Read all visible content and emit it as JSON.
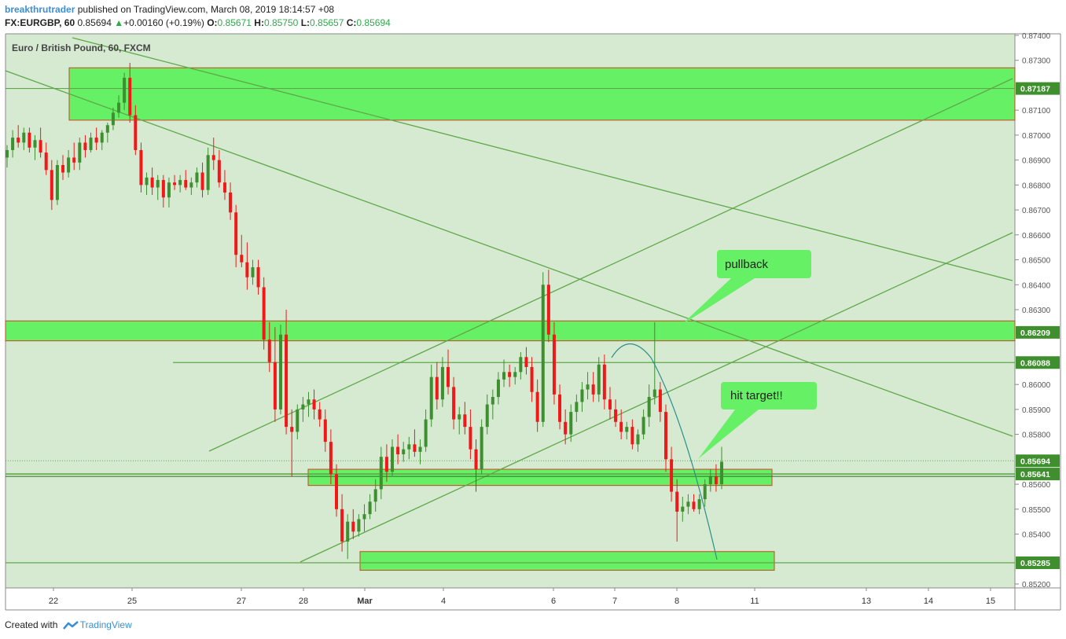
{
  "header": {
    "author": "breakthrutrader",
    "published_text": "published on TradingView.com, March 08, 2019 18:14:57 +08",
    "symbol": "FX:EURGBP, 60",
    "last": "0.85694",
    "change": "+0.00160 (+0.19%)",
    "o_label": "O:",
    "o_value": "0.85671",
    "h_label": "H:",
    "h_value": "0.85750",
    "l_label": "L:",
    "l_value": "0.85657",
    "c_label": "C:",
    "c_value": "0.85694"
  },
  "chart_title": "Euro / British Pound, 60, FXCM",
  "footer": {
    "created_with": "Created with",
    "brand": "TradingView"
  },
  "colors": {
    "background": "#d6ead2",
    "zone_fill": "#66f065",
    "zone_border": "#cc4422",
    "trendline": "#5fa84a",
    "up_candle": "#3d8f2f",
    "down_candle": "#f01818",
    "arc": "#2a8f8a",
    "callout": "#66f065",
    "price_tag": "#3f8f2e"
  },
  "chart_data": {
    "type": "candlestick",
    "y_axis": {
      "range": [
        0.8517,
        0.8742
      ],
      "ticks": [
        "0.87400",
        "0.87300",
        "0.87100",
        "0.87000",
        "0.86900",
        "0.86800",
        "0.86700",
        "0.86600",
        "0.86500",
        "0.86400",
        "0.86300",
        "0.86000",
        "0.85900",
        "0.85800",
        "0.85600",
        "0.85500",
        "0.85400",
        "0.85200"
      ]
    },
    "x_axis": {
      "ticks": [
        "22",
        "25",
        "27",
        "28",
        "Mar",
        "4",
        "6",
        "7",
        "8",
        "11",
        "13",
        "14",
        "15"
      ]
    },
    "price_tags": [
      {
        "label": "0.87187",
        "value": 0.87187
      },
      {
        "label": "0.86209",
        "value": 0.86209
      },
      {
        "label": "0.86088",
        "value": 0.86088
      },
      {
        "label": "0.85694",
        "value": 0.85694,
        "dotted": true
      },
      {
        "label": "0.85641",
        "value": 0.85641
      },
      {
        "label": "0.85285",
        "value": 0.85285
      }
    ],
    "annotations": [
      {
        "text": "pullback"
      },
      {
        "text": "hit target!!"
      }
    ],
    "candles": [
      [
        0.8691,
        0.8696,
        0.8687,
        0.8694
      ],
      [
        0.8694,
        0.8702,
        0.8691,
        0.8699
      ],
      [
        0.8699,
        0.8704,
        0.8695,
        0.8697
      ],
      [
        0.8697,
        0.8703,
        0.8694,
        0.8701
      ],
      [
        0.8701,
        0.8703,
        0.8693,
        0.8695
      ],
      [
        0.8695,
        0.87,
        0.869,
        0.8698
      ],
      [
        0.8698,
        0.8703,
        0.8691,
        0.8693
      ],
      [
        0.8693,
        0.8697,
        0.8684,
        0.8686
      ],
      [
        0.8686,
        0.869,
        0.867,
        0.8674
      ],
      [
        0.8674,
        0.869,
        0.8672,
        0.8688
      ],
      [
        0.8688,
        0.8692,
        0.8682,
        0.8685
      ],
      [
        0.8685,
        0.8694,
        0.8683,
        0.8691
      ],
      [
        0.8691,
        0.8697,
        0.8686,
        0.8689
      ],
      [
        0.8689,
        0.8699,
        0.8686,
        0.8697
      ],
      [
        0.8697,
        0.87,
        0.8691,
        0.8694
      ],
      [
        0.8694,
        0.8701,
        0.8693,
        0.8699
      ],
      [
        0.8699,
        0.8703,
        0.8694,
        0.8697
      ],
      [
        0.8697,
        0.8702,
        0.8694,
        0.8701
      ],
      [
        0.8701,
        0.8705,
        0.8697,
        0.8704
      ],
      [
        0.8704,
        0.8711,
        0.8702,
        0.8709
      ],
      [
        0.8709,
        0.8716,
        0.8707,
        0.8713
      ],
      [
        0.8713,
        0.8725,
        0.871,
        0.8723
      ],
      [
        0.8723,
        0.8729,
        0.8705,
        0.8708
      ],
      [
        0.8708,
        0.8712,
        0.8692,
        0.8694
      ],
      [
        0.8694,
        0.8697,
        0.8677,
        0.868
      ],
      [
        0.868,
        0.8685,
        0.8676,
        0.8683
      ],
      [
        0.8683,
        0.8687,
        0.8676,
        0.8679
      ],
      [
        0.8679,
        0.8684,
        0.8674,
        0.8682
      ],
      [
        0.8682,
        0.8684,
        0.8671,
        0.8675
      ],
      [
        0.8675,
        0.8683,
        0.8671,
        0.8681
      ],
      [
        0.8681,
        0.8684,
        0.8678,
        0.868
      ],
      [
        0.868,
        0.8684,
        0.8677,
        0.8682
      ],
      [
        0.8682,
        0.8686,
        0.8678,
        0.8679
      ],
      [
        0.8679,
        0.8683,
        0.8676,
        0.8681
      ],
      [
        0.8681,
        0.8687,
        0.8679,
        0.8685
      ],
      [
        0.8685,
        0.8689,
        0.8675,
        0.8678
      ],
      [
        0.8678,
        0.8695,
        0.8676,
        0.8692
      ],
      [
        0.8692,
        0.8699,
        0.8686,
        0.869
      ],
      [
        0.869,
        0.8694,
        0.8679,
        0.8681
      ],
      [
        0.8681,
        0.8686,
        0.8674,
        0.8677
      ],
      [
        0.8677,
        0.8681,
        0.8666,
        0.8669
      ],
      [
        0.8669,
        0.8672,
        0.8647,
        0.8652
      ],
      [
        0.8652,
        0.866,
        0.8647,
        0.8649
      ],
      [
        0.8649,
        0.8657,
        0.8638,
        0.8643
      ],
      [
        0.8643,
        0.865,
        0.864,
        0.8647
      ],
      [
        0.8647,
        0.865,
        0.8636,
        0.8639
      ],
      [
        0.8639,
        0.8643,
        0.8614,
        0.8618
      ],
      [
        0.8618,
        0.8625,
        0.8605,
        0.8609
      ],
      [
        0.8609,
        0.8623,
        0.8585,
        0.859
      ],
      [
        0.859,
        0.8624,
        0.8588,
        0.862
      ],
      [
        0.862,
        0.863,
        0.858,
        0.8583
      ],
      [
        0.8583,
        0.859,
        0.8563,
        0.8581
      ],
      [
        0.8581,
        0.8592,
        0.8578,
        0.859
      ],
      [
        0.859,
        0.8595,
        0.8585,
        0.8592
      ],
      [
        0.8592,
        0.8597,
        0.8587,
        0.8594
      ],
      [
        0.8594,
        0.8598,
        0.8586,
        0.859
      ],
      [
        0.859,
        0.8593,
        0.8583,
        0.8586
      ],
      [
        0.8586,
        0.859,
        0.8573,
        0.8577
      ],
      [
        0.8577,
        0.8582,
        0.856,
        0.8564
      ],
      [
        0.8564,
        0.8568,
        0.8547,
        0.855
      ],
      [
        0.855,
        0.8556,
        0.8533,
        0.8537
      ],
      [
        0.8537,
        0.8548,
        0.853,
        0.8545
      ],
      [
        0.8545,
        0.855,
        0.8538,
        0.8541
      ],
      [
        0.8541,
        0.8548,
        0.8539,
        0.8546
      ],
      [
        0.8546,
        0.8552,
        0.8541,
        0.8548
      ],
      [
        0.8548,
        0.8556,
        0.8546,
        0.8553
      ],
      [
        0.8553,
        0.8562,
        0.8549,
        0.8558
      ],
      [
        0.8558,
        0.8575,
        0.8554,
        0.8571
      ],
      [
        0.8571,
        0.8576,
        0.8561,
        0.8565
      ],
      [
        0.8565,
        0.8578,
        0.8563,
        0.8575
      ],
      [
        0.8575,
        0.858,
        0.8568,
        0.8572
      ],
      [
        0.8572,
        0.8577,
        0.8569,
        0.8574
      ],
      [
        0.8574,
        0.8579,
        0.857,
        0.8576
      ],
      [
        0.8576,
        0.8582,
        0.8571,
        0.8573
      ],
      [
        0.8573,
        0.8578,
        0.8568,
        0.8575
      ],
      [
        0.8575,
        0.859,
        0.8573,
        0.8586
      ],
      [
        0.8586,
        0.8608,
        0.8583,
        0.8603
      ],
      [
        0.8603,
        0.8609,
        0.859,
        0.8594
      ],
      [
        0.8594,
        0.8611,
        0.8591,
        0.8607
      ],
      [
        0.8607,
        0.8614,
        0.8596,
        0.8599
      ],
      [
        0.8599,
        0.8603,
        0.8582,
        0.8586
      ],
      [
        0.8586,
        0.8591,
        0.858,
        0.8588
      ],
      [
        0.8588,
        0.8593,
        0.858,
        0.8583
      ],
      [
        0.8583,
        0.859,
        0.857,
        0.8574
      ],
      [
        0.8574,
        0.8578,
        0.8557,
        0.8566
      ],
      [
        0.8566,
        0.8586,
        0.8564,
        0.8583
      ],
      [
        0.8583,
        0.8596,
        0.858,
        0.8592
      ],
      [
        0.8592,
        0.8598,
        0.8586,
        0.8595
      ],
      [
        0.8595,
        0.8605,
        0.8592,
        0.8602
      ],
      [
        0.8602,
        0.861,
        0.8599,
        0.8605
      ],
      [
        0.8605,
        0.8608,
        0.8599,
        0.8603
      ],
      [
        0.8603,
        0.8607,
        0.86,
        0.8605
      ],
      [
        0.8605,
        0.8613,
        0.8602,
        0.8611
      ],
      [
        0.8611,
        0.8615,
        0.8604,
        0.8607
      ],
      [
        0.8607,
        0.8611,
        0.8593,
        0.8597
      ],
      [
        0.8597,
        0.8602,
        0.8581,
        0.8585
      ],
      [
        0.8585,
        0.8645,
        0.8583,
        0.864
      ],
      [
        0.864,
        0.8646,
        0.8617,
        0.862
      ],
      [
        0.862,
        0.8625,
        0.8592,
        0.8596
      ],
      [
        0.8596,
        0.86,
        0.8582,
        0.8585
      ],
      [
        0.8585,
        0.859,
        0.8576,
        0.858
      ],
      [
        0.858,
        0.8592,
        0.8577,
        0.8589
      ],
      [
        0.8589,
        0.8596,
        0.8585,
        0.8593
      ],
      [
        0.8593,
        0.8601,
        0.8589,
        0.8598
      ],
      [
        0.8598,
        0.8605,
        0.8594,
        0.86
      ],
      [
        0.86,
        0.8605,
        0.8593,
        0.8596
      ],
      [
        0.8596,
        0.8611,
        0.8593,
        0.8608
      ],
      [
        0.8608,
        0.8612,
        0.859,
        0.8594
      ],
      [
        0.8594,
        0.8599,
        0.8586,
        0.859
      ],
      [
        0.859,
        0.8594,
        0.8583,
        0.8585
      ],
      [
        0.8585,
        0.859,
        0.8578,
        0.8581
      ],
      [
        0.8581,
        0.8585,
        0.8578,
        0.8583
      ],
      [
        0.8583,
        0.8586,
        0.8574,
        0.8576
      ],
      [
        0.8576,
        0.8582,
        0.8573,
        0.858
      ],
      [
        0.858,
        0.859,
        0.8578,
        0.8587
      ],
      [
        0.8587,
        0.86,
        0.8583,
        0.8595
      ],
      [
        0.8595,
        0.8625,
        0.8592,
        0.8598
      ],
      [
        0.8598,
        0.8601,
        0.8585,
        0.8589
      ],
      [
        0.8589,
        0.8592,
        0.8565,
        0.857
      ],
      [
        0.857,
        0.8575,
        0.8553,
        0.8557
      ],
      [
        0.8557,
        0.8562,
        0.8537,
        0.8549
      ],
      [
        0.8549,
        0.8555,
        0.8545,
        0.8551
      ],
      [
        0.8551,
        0.8556,
        0.8548,
        0.8553
      ],
      [
        0.8553,
        0.8556,
        0.8549,
        0.855
      ],
      [
        0.855,
        0.8556,
        0.8548,
        0.8554
      ],
      [
        0.8554,
        0.8562,
        0.8551,
        0.856
      ],
      [
        0.856,
        0.8566,
        0.8557,
        0.8563
      ],
      [
        0.8563,
        0.8568,
        0.8557,
        0.856
      ],
      [
        0.856,
        0.8575,
        0.8558,
        0.8569
      ]
    ]
  }
}
